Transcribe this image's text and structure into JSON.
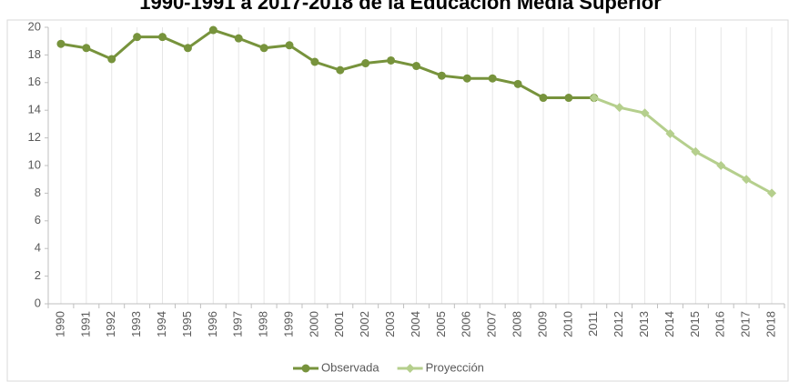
{
  "chart_data": {
    "type": "line",
    "title": "1990-1991 a 2017-2018 de la Educación Media Superior",
    "categories": [
      "1990",
      "1991",
      "1992",
      "1993",
      "1994",
      "1995",
      "1996",
      "1997",
      "1998",
      "1999",
      "2000",
      "2001",
      "2002",
      "2003",
      "2004",
      "2005",
      "2006",
      "2007",
      "2008",
      "2009",
      "2010",
      "2011",
      "2012",
      "2013",
      "2014",
      "2015",
      "2016",
      "2017",
      "2018"
    ],
    "series": [
      {
        "name": "Observada",
        "color": "#77933c",
        "marker": "circle",
        "values": [
          18.8,
          18.5,
          17.7,
          19.3,
          19.3,
          18.5,
          19.8,
          19.2,
          18.5,
          18.7,
          17.5,
          16.9,
          17.4,
          17.6,
          17.2,
          16.5,
          16.3,
          16.3,
          15.9,
          14.9,
          14.9,
          14.9,
          null,
          null,
          null,
          null,
          null,
          null,
          null
        ]
      },
      {
        "name": "Proyección",
        "color": "#b5cf8d",
        "marker": "diamond",
        "values": [
          null,
          null,
          null,
          null,
          null,
          null,
          null,
          null,
          null,
          null,
          null,
          null,
          null,
          null,
          null,
          null,
          null,
          null,
          null,
          null,
          null,
          14.9,
          14.2,
          13.8,
          12.3,
          11.0,
          10.0,
          9.0,
          8.0
        ]
      }
    ],
    "ylim": [
      0,
      20
    ],
    "yticks": [
      0,
      2,
      4,
      6,
      8,
      10,
      12,
      14,
      16,
      18,
      20
    ],
    "legend": "bottom"
  }
}
